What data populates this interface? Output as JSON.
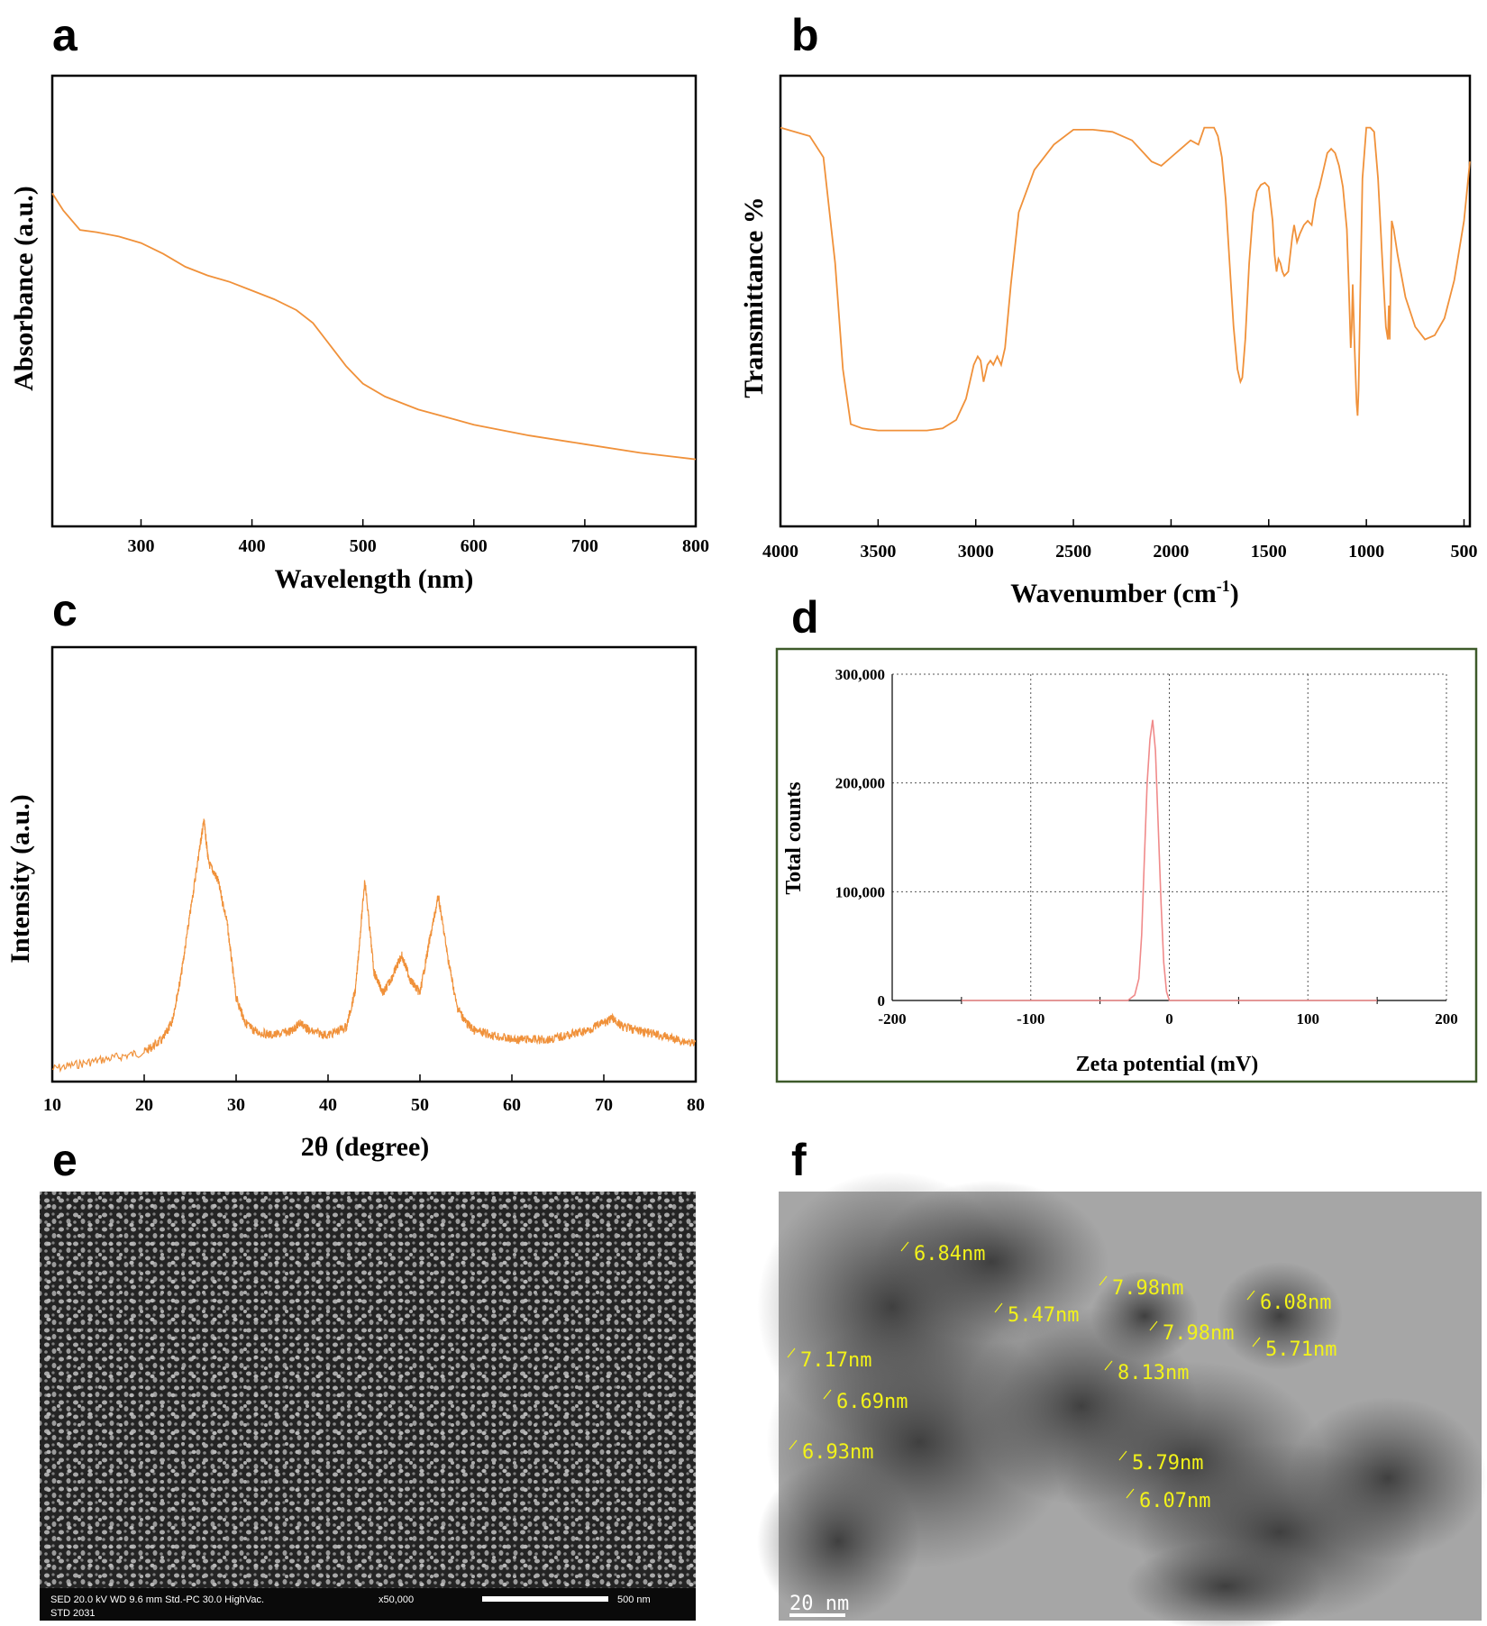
{
  "panels": {
    "a": {
      "label": "a"
    },
    "b": {
      "label": "b"
    },
    "c": {
      "label": "c"
    },
    "d": {
      "label": "d"
    },
    "e": {
      "label": "e"
    },
    "f": {
      "label": "f"
    }
  },
  "chart_data": [
    {
      "id": "a",
      "type": "line",
      "title": "",
      "xlabel": "Wavelength (nm)",
      "ylabel": "Absorbance (a.u.)",
      "xlim": [
        220,
        800
      ],
      "ylim": [
        0,
        1
      ],
      "xticks": [
        300,
        400,
        500,
        600,
        700,
        800
      ],
      "color": "#f0913a",
      "x": [
        220,
        230,
        245,
        260,
        280,
        300,
        320,
        340,
        360,
        380,
        400,
        420,
        440,
        455,
        470,
        485,
        500,
        520,
        550,
        600,
        650,
        700,
        750,
        800
      ],
      "y": [
        0.77,
        0.73,
        0.685,
        0.68,
        0.67,
        0.655,
        0.63,
        0.6,
        0.58,
        0.565,
        0.545,
        0.525,
        0.5,
        0.47,
        0.42,
        0.37,
        0.33,
        0.3,
        0.27,
        0.235,
        0.21,
        0.19,
        0.17,
        0.155
      ]
    },
    {
      "id": "b",
      "type": "line",
      "title": "",
      "xlabel": "Wavenumber (cm",
      "xlabel_superscript": "-1",
      "xlabel_suffix": ")",
      "ylabel": "Transmittance %",
      "xlim": [
        4000,
        470
      ],
      "ylim": [
        0,
        1
      ],
      "xticks": [
        4000,
        3500,
        3000,
        2500,
        2000,
        1500,
        1000,
        500
      ],
      "color": "#f0913a",
      "x": [
        4000,
        3850,
        3780,
        3720,
        3680,
        3640,
        3580,
        3500,
        3350,
        3250,
        3170,
        3100,
        3050,
        3010,
        2990,
        2975,
        2960,
        2940,
        2925,
        2910,
        2890,
        2870,
        2850,
        2820,
        2780,
        2700,
        2600,
        2500,
        2400,
        2300,
        2200,
        2150,
        2100,
        2050,
        2000,
        1950,
        1900,
        1860,
        1830,
        1780,
        1760,
        1740,
        1720,
        1700,
        1680,
        1660,
        1645,
        1635,
        1620,
        1600,
        1580,
        1560,
        1540,
        1520,
        1500,
        1480,
        1470,
        1460,
        1450,
        1440,
        1430,
        1420,
        1400,
        1380,
        1370,
        1355,
        1340,
        1320,
        1300,
        1280,
        1260,
        1240,
        1220,
        1200,
        1180,
        1160,
        1140,
        1120,
        1100,
        1090,
        1080,
        1075,
        1070,
        1060,
        1050,
        1045,
        1040,
        1030,
        1020,
        1000,
        980,
        960,
        940,
        920,
        900,
        890,
        885,
        880,
        875,
        870,
        860,
        840,
        800,
        750,
        700,
        650,
        600,
        550,
        500,
        470
      ],
      "y": [
        0.92,
        0.9,
        0.85,
        0.6,
        0.35,
        0.22,
        0.21,
        0.205,
        0.205,
        0.205,
        0.21,
        0.23,
        0.28,
        0.36,
        0.38,
        0.37,
        0.32,
        0.36,
        0.37,
        0.36,
        0.38,
        0.36,
        0.4,
        0.55,
        0.72,
        0.82,
        0.88,
        0.915,
        0.915,
        0.91,
        0.89,
        0.865,
        0.84,
        0.83,
        0.85,
        0.87,
        0.89,
        0.88,
        0.92,
        0.92,
        0.9,
        0.85,
        0.75,
        0.6,
        0.45,
        0.35,
        0.32,
        0.33,
        0.42,
        0.6,
        0.72,
        0.77,
        0.785,
        0.79,
        0.78,
        0.7,
        0.62,
        0.58,
        0.61,
        0.6,
        0.58,
        0.57,
        0.58,
        0.66,
        0.69,
        0.65,
        0.67,
        0.69,
        0.7,
        0.69,
        0.75,
        0.78,
        0.82,
        0.86,
        0.87,
        0.86,
        0.83,
        0.78,
        0.68,
        0.55,
        0.4,
        0.45,
        0.55,
        0.4,
        0.27,
        0.24,
        0.3,
        0.55,
        0.8,
        0.92,
        0.92,
        0.91,
        0.8,
        0.62,
        0.45,
        0.42,
        0.5,
        0.42,
        0.58,
        0.7,
        0.68,
        0.62,
        0.52,
        0.45,
        0.42,
        0.43,
        0.47,
        0.56,
        0.7,
        0.84
      ]
    },
    {
      "id": "c",
      "type": "line",
      "title": "",
      "xlabel": "2θ (degree)",
      "ylabel": "Intensity (a.u.)",
      "xlim": [
        10,
        80
      ],
      "ylim": [
        0,
        1
      ],
      "xticks": [
        10,
        20,
        30,
        40,
        50,
        60,
        70,
        80
      ],
      "color": "#f0913a",
      "x": [
        10,
        15,
        20,
        22,
        23,
        24,
        25,
        26,
        26.5,
        27,
        28,
        29,
        30,
        31,
        32,
        34,
        36,
        37,
        38,
        40,
        42,
        43,
        44,
        45,
        46,
        47,
        48,
        49,
        50,
        51,
        52,
        53,
        54,
        55,
        56,
        58,
        60,
        62,
        64,
        66,
        68,
        70,
        71,
        72,
        74,
        76,
        78,
        80
      ],
      "y": [
        0.03,
        0.05,
        0.07,
        0.1,
        0.14,
        0.25,
        0.4,
        0.55,
        0.62,
        0.52,
        0.48,
        0.38,
        0.2,
        0.14,
        0.12,
        0.11,
        0.12,
        0.14,
        0.12,
        0.11,
        0.13,
        0.22,
        0.48,
        0.26,
        0.21,
        0.25,
        0.3,
        0.24,
        0.21,
        0.33,
        0.44,
        0.3,
        0.18,
        0.14,
        0.12,
        0.11,
        0.1,
        0.1,
        0.1,
        0.11,
        0.12,
        0.14,
        0.15,
        0.13,
        0.12,
        0.11,
        0.1,
        0.09
      ]
    },
    {
      "id": "d",
      "type": "line",
      "title": "",
      "xlabel": "Zeta potential (mV)",
      "ylabel": "Total counts",
      "xlim": [
        -200,
        200
      ],
      "ylim": [
        0,
        300000
      ],
      "xticks": [
        -200,
        -100,
        0,
        100,
        200
      ],
      "yticks": [
        0,
        100000,
        200000,
        300000
      ],
      "yticklabels": [
        "0",
        "100,000",
        "200,000",
        "300,000"
      ],
      "grid": true,
      "color": "#f08a8a",
      "x": [
        -150,
        -30,
        -25,
        -22,
        -20,
        -18,
        -16,
        -14,
        -12,
        -10,
        -8,
        -6,
        -4,
        -2,
        0,
        150
      ],
      "y": [
        0,
        0,
        5000,
        20000,
        60000,
        130000,
        200000,
        240000,
        258000,
        230000,
        160000,
        90000,
        35000,
        8000,
        0,
        0
      ]
    }
  ],
  "sem": {
    "info_left": "SED   20.0 kV   WD 9.6 mm   Std.-PC 30.0   HighVac.",
    "magnification": "x50,000",
    "detector": "STD   2031",
    "scalebar": "500 nm"
  },
  "tem": {
    "scalebar": "20 nm",
    "measurements": [
      "6.84nm",
      "5.47nm",
      "7.98nm",
      "6.08nm",
      "7.98nm",
      "5.71nm",
      "8.13nm",
      "7.17nm",
      "6.69nm",
      "6.93nm",
      "5.79nm",
      "6.07nm"
    ]
  }
}
